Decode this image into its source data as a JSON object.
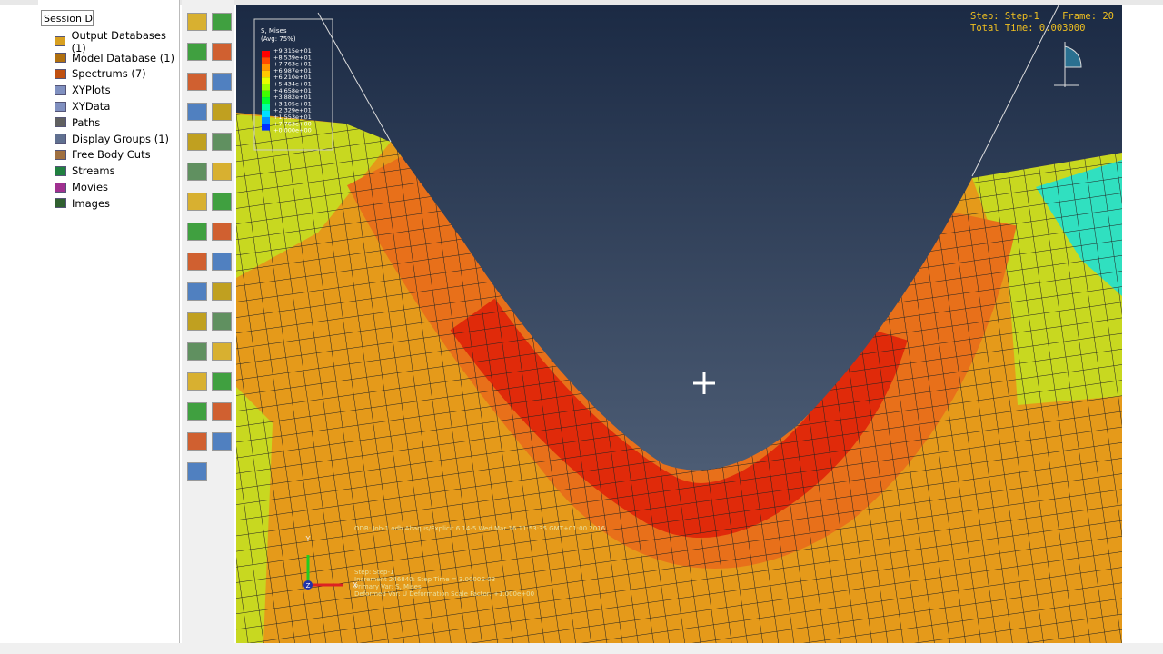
{
  "session_combo": "Session D",
  "tree": [
    "Output Databases (1)",
    "Model Database (1)",
    "Spectrums (7)",
    "XYPlots",
    "XYData",
    "Paths",
    "Display Groups (1)",
    "Free Body Cuts",
    "Streams",
    "Movies",
    "Images"
  ],
  "legend": {
    "title": "S, Mises",
    "subtitle": "(Avg: 75%)",
    "values": [
      "+9.315e+01",
      "+8.539e+01",
      "+7.763e+01",
      "+6.987e+01",
      "+6.210e+01",
      "+5.434e+01",
      "+4.658e+01",
      "+3.882e+01",
      "+3.105e+01",
      "+2.329e+01",
      "+1.553e+01",
      "+7.763e+00",
      "+0.000e+00"
    ]
  },
  "status": {
    "step": "Step: Step-1",
    "frame": "Frame: 20",
    "total_time": "Total Time: 0.003000"
  },
  "info": {
    "odb": "ODB: Job-1.odb    Abaqus/Explicit 6.14-5    Wed Mar 16 11:53:35 GMT+01:00 2016",
    "lines": [
      "Step: Step-1",
      "Increment 246840: Step Time = 3.0000E-03",
      "Primary Var: S, Mises",
      "Deformed Var: U  Deformation Scale Factor: +1.000e+00"
    ]
  },
  "triad": {
    "y": "Y",
    "x": "X",
    "z": "Z"
  }
}
